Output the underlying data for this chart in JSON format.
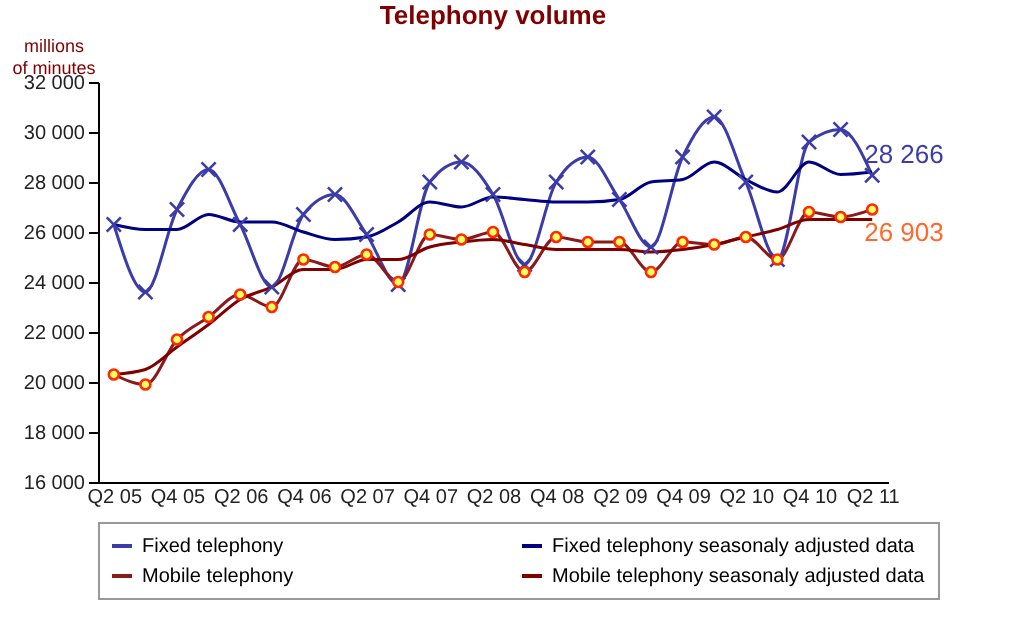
{
  "chart_data": {
    "type": "line",
    "title": "Telephony volume",
    "ylabel": "millions of minutes",
    "categories": [
      "Q2 05",
      null,
      "Q4 05",
      null,
      "Q2 06",
      null,
      "Q4 06",
      null,
      "Q2 07",
      null,
      "Q4 07",
      null,
      "Q2 08",
      null,
      "Q4 08",
      null,
      "Q2 09",
      null,
      "Q4 09",
      null,
      "Q2 10",
      null,
      "Q4 10",
      null,
      "Q2 11"
    ],
    "series": [
      {
        "name": "Fixed telephony",
        "color": "#3c3ca8",
        "marker": "cross",
        "values": [
          26300,
          23600,
          26900,
          28500,
          26300,
          23800,
          26700,
          27500,
          25900,
          23900,
          28000,
          28800,
          27500,
          24700,
          28000,
          29000,
          27300,
          25400,
          29000,
          30600,
          28000,
          24900,
          29600,
          30100,
          28266
        ]
      },
      {
        "name": "Fixed telephony seasonaly adjusted data",
        "color": "#000080",
        "values": [
          26300,
          26100,
          26100,
          26700,
          26400,
          26400,
          26000,
          25700,
          25800,
          26400,
          27200,
          27000,
          27400,
          27300,
          27200,
          27200,
          27300,
          28000,
          28100,
          28800,
          28100,
          27600,
          28800,
          28300,
          28400
        ]
      },
      {
        "name": "Mobile telephony",
        "color": "#8b1a1a",
        "marker": "circle",
        "values": [
          20300,
          19900,
          21700,
          22600,
          23500,
          23000,
          24900,
          24600,
          25100,
          24000,
          25900,
          25700,
          26000,
          24400,
          25800,
          25600,
          25600,
          24400,
          25600,
          25500,
          25800,
          24900,
          26800,
          26600,
          26903
        ]
      },
      {
        "name": "Mobile telephony seasonaly adjusted data",
        "color": "#800000",
        "values": [
          20300,
          20500,
          21400,
          22300,
          23300,
          23800,
          24500,
          24500,
          24900,
          24900,
          25400,
          25600,
          25700,
          25500,
          25300,
          25300,
          25300,
          25200,
          25300,
          25500,
          25800,
          26100,
          26500,
          26500,
          26500
        ]
      }
    ],
    "ylim": [
      16000,
      32000
    ],
    "yticks": [
      {
        "value": 16000,
        "label": "16 000"
      },
      {
        "value": 18000,
        "label": "18 000"
      },
      {
        "value": 20000,
        "label": "20 000"
      },
      {
        "value": 22000,
        "label": "22 000"
      },
      {
        "value": 24000,
        "label": "24 000"
      },
      {
        "value": 26000,
        "label": "26 000"
      },
      {
        "value": 28000,
        "label": "28 000"
      },
      {
        "value": 30000,
        "label": "30 000"
      },
      {
        "value": 32000,
        "label": "32 000"
      }
    ],
    "annotations": [
      {
        "text": "28 266",
        "x": "Q2 11",
        "y": 28266
      },
      {
        "text": "26 903",
        "x": "Q2 11",
        "y": 26903
      }
    ],
    "grid": false,
    "legend": "bottom"
  }
}
